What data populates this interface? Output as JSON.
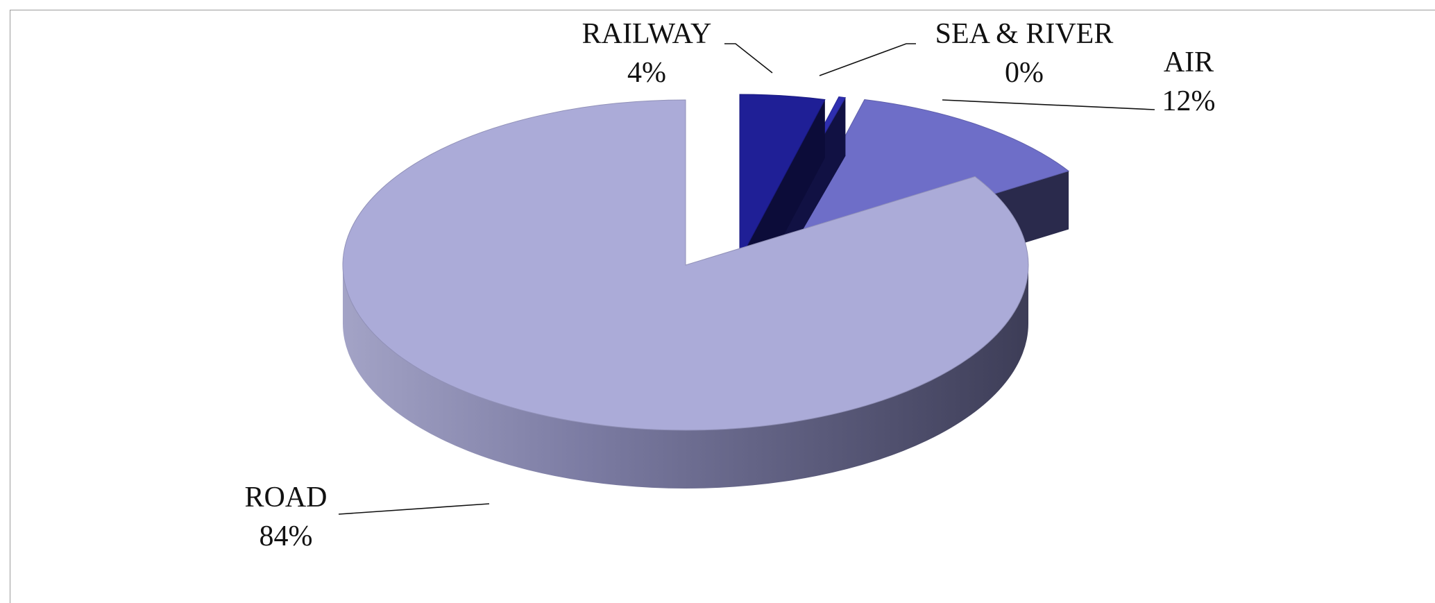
{
  "chart_data": {
    "type": "pie",
    "title": "",
    "slices": [
      {
        "name": "ROAD",
        "value": 84,
        "label": "84%",
        "color": "#ABABD8"
      },
      {
        "name": "RAILWAY",
        "value": 4,
        "label": "4%",
        "color": "#1F1F96"
      },
      {
        "name": "SEA & RIVER",
        "value": 0,
        "label": "0%",
        "color": "#2E2EB0"
      },
      {
        "name": "AIR",
        "value": 12,
        "label": "12%",
        "color": "#6E6EC8"
      }
    ],
    "style": "3d-exploded",
    "legend": "none (data labels with leader lines)"
  }
}
